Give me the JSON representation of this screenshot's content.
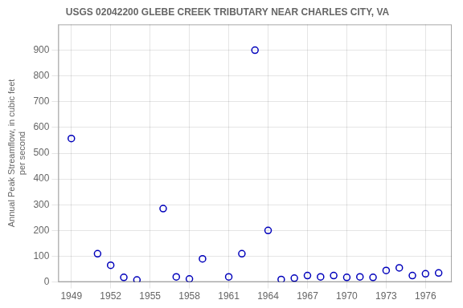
{
  "chart_data": {
    "type": "scatter",
    "title": "USGS 02042200 GLEBE CREEK TRIBUTARY NEAR CHARLES CITY, VA",
    "ylabel": "Annual Peak Streamflow, in cubic feet\nper second",
    "x": [
      1949,
      1951,
      1952,
      1953,
      1954,
      1956,
      1957,
      1958,
      1959,
      1961,
      1962,
      1963,
      1964,
      1965,
      1966,
      1967,
      1968,
      1969,
      1970,
      1971,
      1972,
      1973,
      1974,
      1975,
      1976,
      1977
    ],
    "values": [
      557,
      110,
      65,
      18,
      8,
      285,
      20,
      12,
      90,
      20,
      110,
      900,
      200,
      10,
      15,
      25,
      20,
      25,
      18,
      20,
      18,
      45,
      55,
      25,
      32,
      35
    ],
    "xlim": [
      1948,
      1978
    ],
    "ylim": [
      0,
      1000
    ],
    "xticks": [
      1949,
      1952,
      1955,
      1958,
      1961,
      1964,
      1967,
      1970,
      1973,
      1976
    ],
    "yticks": [
      0,
      100,
      200,
      300,
      400,
      500,
      600,
      700,
      800,
      900
    ],
    "color": "#0000bb",
    "marker": "circle",
    "grid": true
  }
}
